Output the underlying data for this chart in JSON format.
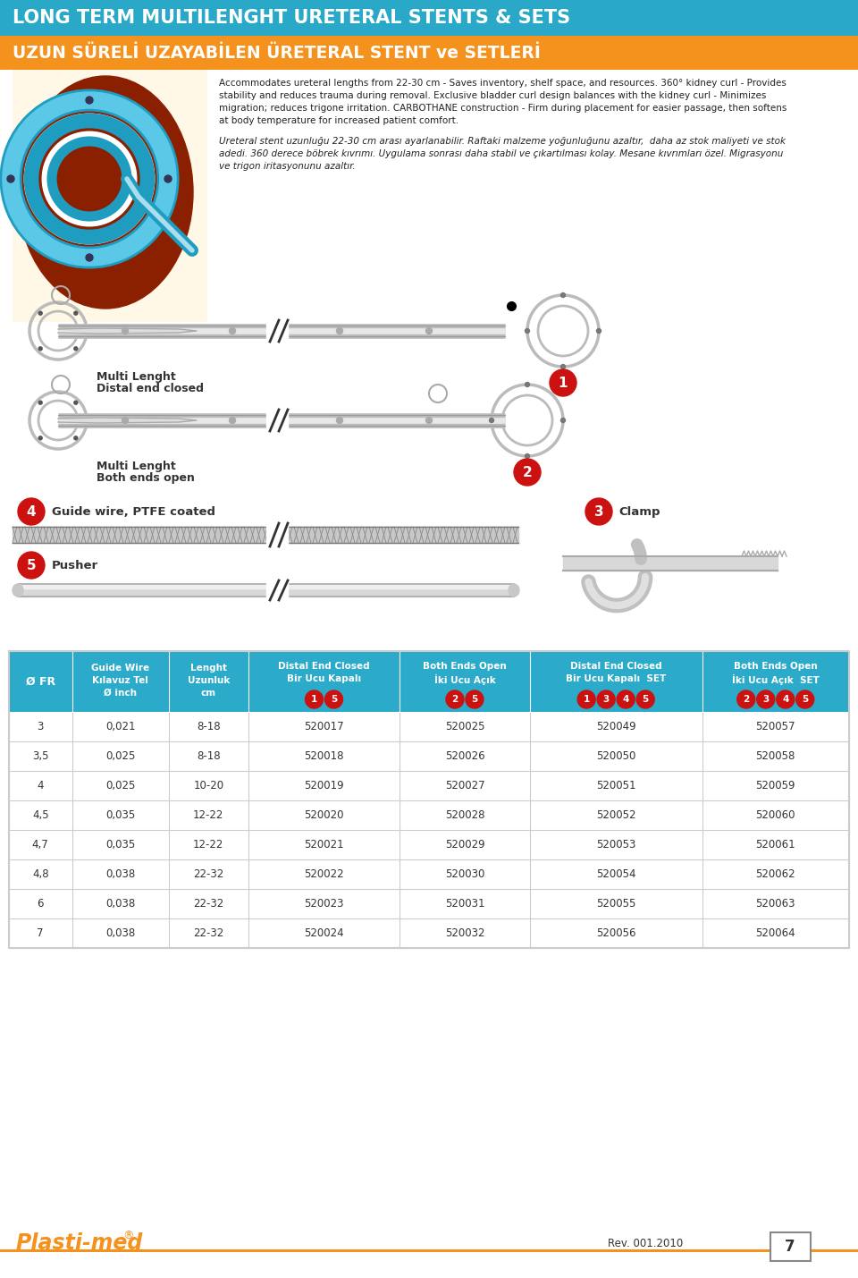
{
  "title1": "LONG TERM MULTILENGHT URETERAL STENTS & SETS",
  "title2": "UZUN SÜRELİ UZAYABİLEN ÜRETERAL STENT ve SETLERİ",
  "title1_bg": "#29A8C8",
  "title2_bg": "#F5921E",
  "title_text_color": "#FFFFFF",
  "body_bg": "#FFFFFF",
  "desc1_line1": "Accommodates ureteral lengths from 22-30 cm - Saves inventory, shelf space, and resources. 360° kidney curl - Provides",
  "desc1_line2": "stability and reduces trauma during removal. Exclusive bladder curl design balances with the kidney curl - Minimizes",
  "desc1_line3": "migration; reduces trigone irritation. CARBOTHANE construction - Firm during placement for easier passage, then softens",
  "desc1_line4": "at body temperature for increased patient comfort.",
  "desc2_line1": "Ureteral stent uzunluğu 22-30 cm arası ayarlanabilir. Raftaki malzeme yoğunluğunu azaltır,  daha az stok maliyeti ve stok",
  "desc2_line2": "adedi. 360 derece böbrek kıvrımı. Uygulama sonrası daha stabil ve çıkartılması kolay. Mesane kıvrımları özel. Migrasyonu",
  "desc2_line3": "ve trigon iritasyonunu azaltır.",
  "table_header_bg": "#2BAAC9",
  "table_border": "#CCCCCC",
  "col_headers_line1": [
    "Ø FR",
    "Guide Wire",
    "Lenght",
    "Distal End Closed",
    "Both Ends Open",
    "Distal End Closed",
    "Both Ends Open"
  ],
  "col_headers_line2": [
    "",
    "Kılavuz Tel",
    "Uzunluk",
    "Bir Ucu Kapalı",
    "İki Ucu Açık",
    "Bir Ucu Kapalı  SET",
    "İki Ucu Açık  SET"
  ],
  "col_headers_line3": [
    "",
    "Ø inch",
    "cm",
    "",
    "",
    "",
    ""
  ],
  "col_header_badges": [
    [],
    [],
    [],
    [
      "1",
      "5"
    ],
    [
      "2",
      "5"
    ],
    [
      "1",
      "3",
      "4",
      "5"
    ],
    [
      "2",
      "3",
      "4",
      "5"
    ]
  ],
  "table_data": [
    [
      "3",
      "0,021",
      "8-18",
      "520017",
      "520025",
      "520049",
      "520057"
    ],
    [
      "3,5",
      "0,025",
      "8-18",
      "520018",
      "520026",
      "520050",
      "520058"
    ],
    [
      "4",
      "0,025",
      "10-20",
      "520019",
      "520027",
      "520051",
      "520059"
    ],
    [
      "4,5",
      "0,035",
      "12-22",
      "520020",
      "520028",
      "520052",
      "520060"
    ],
    [
      "4,7",
      "0,035",
      "12-22",
      "520021",
      "520029",
      "520053",
      "520061"
    ],
    [
      "4,8",
      "0,038",
      "22-32",
      "520022",
      "520030",
      "520054",
      "520062"
    ],
    [
      "6",
      "0,038",
      "22-32",
      "520023",
      "520031",
      "520055",
      "520063"
    ],
    [
      "7",
      "0,038",
      "22-32",
      "520024",
      "520032",
      "520056",
      "520064"
    ]
  ],
  "footer_rev": "Rev. 001.2010",
  "footer_page": "7",
  "red_color": "#CC1111",
  "dark_color": "#333333",
  "gray_color": "#888888",
  "light_gray": "#CCCCCC",
  "stent_gray": "#AAAAAA",
  "label1_l1": "Multi Lenght",
  "label1_l2": "Distal end closed",
  "label2_l1": "Multi Lenght",
  "label2_l2": "Both ends open",
  "label4": "Guide wire, PTFE coated",
  "label5": "Pusher",
  "label3": "Clamp",
  "img_bg_color": "#8B2000",
  "img_cream_color": "#FFF8E7"
}
